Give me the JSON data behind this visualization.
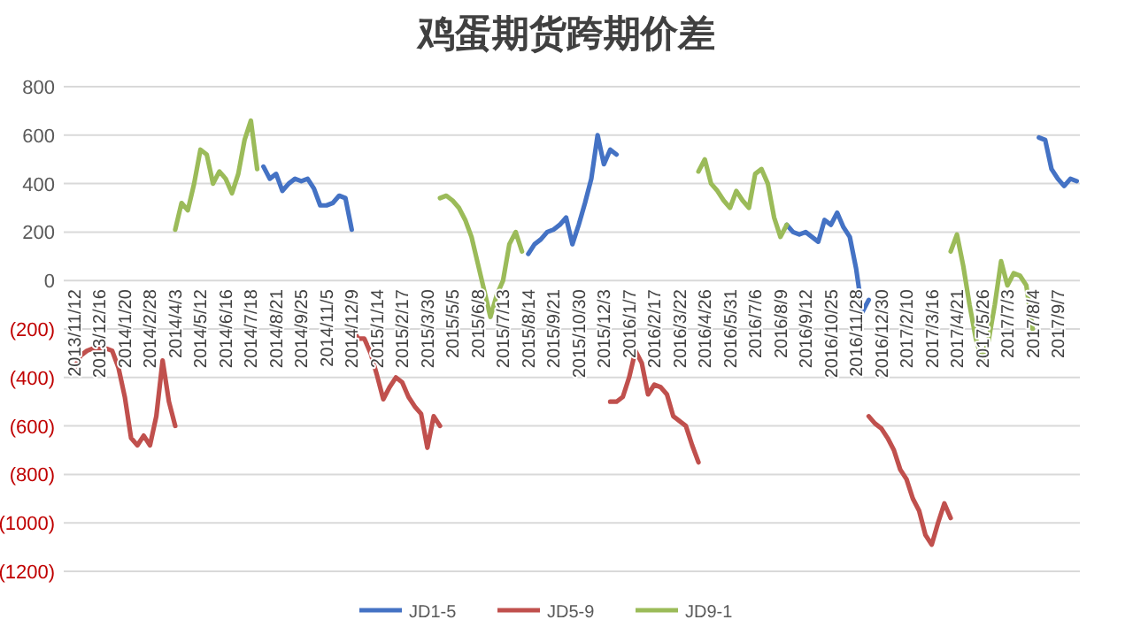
{
  "chart_data": {
    "type": "line",
    "title": "鸡蛋期货跨期价差",
    "categories": [
      "2013/11/12",
      null,
      null,
      null,
      "2013/12/16",
      null,
      null,
      null,
      "2014/1/20",
      null,
      null,
      null,
      "2014/2/28",
      null,
      null,
      null,
      "2014/4/3",
      null,
      null,
      null,
      "2014/5/12",
      null,
      null,
      null,
      "2014/6/16",
      null,
      null,
      null,
      "2014/7/18",
      null,
      null,
      null,
      "2014/8/21",
      null,
      null,
      null,
      "2014/9/25",
      null,
      null,
      null,
      "2014/11/5",
      null,
      null,
      null,
      "2014/12/9",
      null,
      null,
      null,
      "2015/1/14",
      null,
      null,
      null,
      "2015/2/17",
      null,
      null,
      null,
      "2015/3/30",
      null,
      null,
      null,
      "2015/5/5",
      null,
      null,
      null,
      "2015/6/8",
      null,
      null,
      null,
      "2015/7/13",
      null,
      null,
      null,
      "2015/8/14",
      null,
      null,
      null,
      "2015/9/21",
      null,
      null,
      null,
      "2015/10/30",
      null,
      null,
      null,
      "2015/12/3",
      null,
      null,
      null,
      "2016/1/7",
      null,
      null,
      null,
      "2016/2/17",
      null,
      null,
      null,
      "2016/3/22",
      null,
      null,
      null,
      "2016/4/26",
      null,
      null,
      null,
      "2016/5/31",
      null,
      null,
      null,
      "2016/7/6",
      null,
      null,
      null,
      "2016/8/9",
      null,
      null,
      null,
      "2016/9/12",
      null,
      null,
      null,
      "2016/10/25",
      null,
      null,
      null,
      "2016/11/28",
      null,
      null,
      null,
      "2016/12/30",
      null,
      null,
      null,
      "2017/2/10",
      null,
      null,
      null,
      "2017/3/16",
      null,
      null,
      null,
      "2017/4/21",
      null,
      null,
      null,
      "2017/5/26",
      null,
      null,
      null,
      "2017/7/3",
      null,
      null,
      null,
      "2017/8/4",
      null,
      null,
      null,
      "2017/9/7",
      null,
      null,
      null
    ],
    "series": [
      {
        "name": "JD1-5",
        "color": "#4472c4",
        "values": [
          null,
          null,
          null,
          null,
          null,
          null,
          null,
          null,
          null,
          null,
          null,
          null,
          null,
          null,
          null,
          null,
          null,
          null,
          null,
          null,
          null,
          null,
          null,
          null,
          null,
          null,
          null,
          null,
          null,
          null,
          470,
          420,
          440,
          370,
          400,
          420,
          410,
          420,
          380,
          310,
          310,
          320,
          350,
          340,
          210,
          null,
          null,
          null,
          null,
          null,
          null,
          null,
          null,
          null,
          null,
          null,
          null,
          null,
          null,
          null,
          null,
          null,
          null,
          null,
          null,
          null,
          null,
          null,
          null,
          null,
          null,
          null,
          110,
          150,
          170,
          200,
          210,
          230,
          260,
          150,
          230,
          320,
          420,
          600,
          480,
          540,
          520,
          null,
          null,
          null,
          null,
          null,
          null,
          null,
          null,
          null,
          null,
          null,
          null,
          null,
          null,
          null,
          null,
          null,
          null,
          null,
          null,
          null,
          null,
          null,
          null,
          null,
          null,
          230,
          200,
          190,
          200,
          180,
          160,
          250,
          230,
          280,
          220,
          180,
          50,
          -130,
          -80,
          null,
          null,
          null,
          null,
          null,
          null,
          null,
          null,
          null,
          null,
          null,
          null,
          null,
          null,
          null,
          null,
          null,
          null,
          null,
          null,
          null,
          null,
          null,
          null,
          null,
          null,
          590,
          580,
          460,
          420,
          390,
          420,
          410
        ]
      },
      {
        "name": "JD5-9",
        "color": "#c0504d",
        "values": [
          -360,
          -310,
          -290,
          -280,
          -280,
          -280,
          -290,
          -360,
          -480,
          -650,
          -680,
          -640,
          -680,
          -560,
          -330,
          -500,
          -600,
          null,
          null,
          null,
          null,
          null,
          null,
          null,
          null,
          null,
          null,
          null,
          null,
          null,
          null,
          null,
          null,
          null,
          null,
          null,
          null,
          null,
          null,
          null,
          null,
          null,
          null,
          null,
          -190,
          -240,
          -240,
          -300,
          -390,
          -490,
          -440,
          -400,
          -420,
          -480,
          -520,
          -550,
          -690,
          -560,
          -600,
          null,
          null,
          null,
          null,
          null,
          null,
          null,
          null,
          null,
          null,
          null,
          null,
          null,
          null,
          null,
          null,
          null,
          null,
          null,
          null,
          null,
          null,
          null,
          null,
          null,
          null,
          -500,
          -500,
          -480,
          -400,
          -290,
          -340,
          -470,
          -430,
          -440,
          -470,
          -560,
          -580,
          -600,
          -680,
          -750,
          null,
          null,
          null,
          null,
          null,
          null,
          null,
          null,
          null,
          null,
          null,
          null,
          null,
          null,
          null,
          null,
          null,
          null,
          null,
          null,
          null,
          null,
          null,
          null,
          null,
          null,
          -560,
          -590,
          -610,
          -650,
          -700,
          -780,
          -820,
          -900,
          -950,
          -1050,
          -1090,
          -1000,
          -920,
          -980,
          null,
          null,
          null,
          null,
          null,
          null,
          null,
          null,
          null,
          null,
          null,
          null,
          null,
          null,
          null,
          null,
          null,
          null,
          null,
          null
        ]
      },
      {
        "name": "JD9-1",
        "color": "#9bbb59",
        "values": [
          null,
          null,
          null,
          null,
          null,
          null,
          null,
          null,
          null,
          null,
          null,
          null,
          null,
          null,
          null,
          null,
          210,
          320,
          290,
          400,
          540,
          520,
          400,
          450,
          420,
          360,
          440,
          580,
          660,
          460,
          null,
          null,
          null,
          null,
          null,
          null,
          null,
          null,
          null,
          null,
          null,
          null,
          null,
          null,
          null,
          null,
          null,
          null,
          null,
          null,
          null,
          null,
          null,
          null,
          null,
          null,
          null,
          null,
          340,
          350,
          330,
          300,
          250,
          180,
          70,
          -40,
          -150,
          -60,
          0,
          150,
          200,
          120,
          null,
          null,
          null,
          null,
          null,
          null,
          null,
          null,
          null,
          null,
          null,
          null,
          null,
          null,
          null,
          null,
          null,
          null,
          null,
          null,
          null,
          null,
          null,
          null,
          null,
          null,
          null,
          450,
          500,
          400,
          370,
          330,
          300,
          370,
          330,
          300,
          440,
          460,
          400,
          260,
          180,
          230,
          null,
          null,
          null,
          null,
          null,
          null,
          null,
          null,
          null,
          null,
          null,
          null,
          null,
          null,
          null,
          null,
          null,
          null,
          null,
          null,
          null,
          null,
          null,
          null,
          null,
          120,
          190,
          60,
          -100,
          -240,
          -330,
          -250,
          -100,
          80,
          -20,
          30,
          20,
          -20,
          -200,
          null,
          null,
          null,
          null,
          null,
          null,
          null
        ]
      }
    ],
    "ylim": [
      -1200,
      800
    ],
    "yticks": [
      800,
      600,
      400,
      200,
      0,
      {
        "value": -200,
        "label": "(200)"
      },
      {
        "value": -400,
        "label": "(400)"
      },
      {
        "value": -600,
        "label": "(600)"
      },
      {
        "value": -800,
        "label": "(800)"
      },
      {
        "value": -1000,
        "label": "(1000)"
      },
      {
        "value": -1200,
        "label": "(1200)"
      }
    ],
    "grid": "y",
    "legend": "bottom"
  }
}
